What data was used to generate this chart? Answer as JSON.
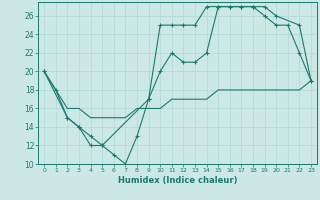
{
  "xlabel": "Humidex (Indice chaleur)",
  "background_color": "#cce8e5",
  "line_color": "#1a7a6e",
  "grid_color": "#b0d8d4",
  "xlim": [
    0,
    23
  ],
  "ylim": [
    10,
    27
  ],
  "yticks": [
    10,
    12,
    14,
    16,
    18,
    20,
    22,
    24,
    26
  ],
  "xticks": [
    0,
    1,
    2,
    3,
    4,
    5,
    6,
    7,
    8,
    9,
    10,
    11,
    12,
    13,
    14,
    15,
    16,
    17,
    18,
    19,
    20,
    21,
    22,
    23
  ],
  "line1_x": [
    0,
    1,
    2,
    3,
    4,
    5,
    6,
    7,
    8,
    9,
    10,
    11,
    12,
    13,
    14,
    15,
    16,
    17,
    18,
    19,
    20,
    21,
    22,
    23
  ],
  "line1_y": [
    20,
    18,
    15,
    14,
    12,
    12,
    11,
    10,
    13,
    17,
    25,
    25,
    25,
    25,
    27,
    27,
    27,
    27,
    27,
    26,
    25,
    25,
    22,
    19
  ],
  "line2_x": [
    0,
    2,
    3,
    4,
    5,
    9,
    10,
    11,
    12,
    13,
    14,
    15,
    16,
    17,
    18,
    19,
    20,
    22,
    23
  ],
  "line2_y": [
    20,
    15,
    14,
    13,
    12,
    17,
    20,
    22,
    21,
    21,
    22,
    27,
    27,
    27,
    27,
    27,
    26,
    25,
    19
  ],
  "line3_x": [
    0,
    1,
    2,
    3,
    4,
    5,
    6,
    7,
    8,
    9,
    10,
    11,
    12,
    13,
    14,
    15,
    16,
    17,
    18,
    19,
    20,
    21,
    22,
    23
  ],
  "line3_y": [
    20,
    18,
    16,
    16,
    15,
    15,
    15,
    15,
    16,
    16,
    16,
    17,
    17,
    17,
    17,
    18,
    18,
    18,
    18,
    18,
    18,
    18,
    18,
    19
  ]
}
